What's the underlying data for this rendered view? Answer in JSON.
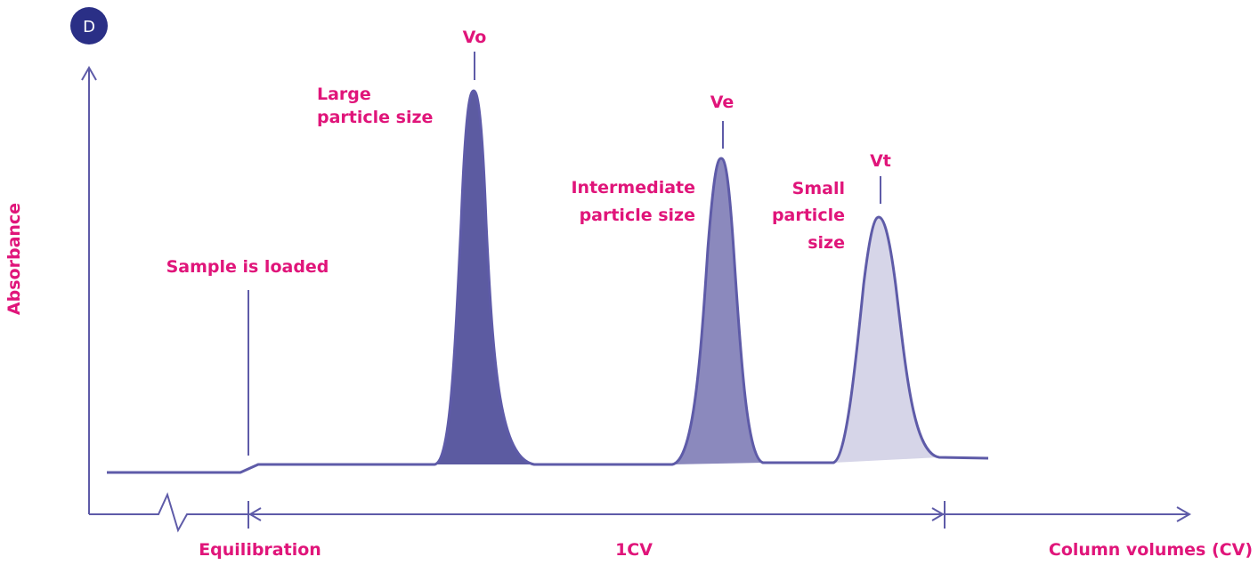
{
  "badge": {
    "letter": "D"
  },
  "axes": {
    "y_label": "Absorbance",
    "x_label": "Column volumes (CV)"
  },
  "segments": {
    "equilibration": "Equilibration",
    "cv": "1CV"
  },
  "events": {
    "sample_loaded": "Sample is loaded"
  },
  "peaks": [
    {
      "id": "vo",
      "marker": "Vo",
      "desc_lines": [
        "Large",
        "particle size"
      ]
    },
    {
      "id": "ve",
      "marker": "Ve",
      "desc_lines": [
        "Intermediate",
        "particle size"
      ]
    },
    {
      "id": "vt",
      "marker": "Vt",
      "desc_lines": [
        "Small",
        "particle",
        "size"
      ]
    }
  ],
  "colors": {
    "line": "#5e5ba8",
    "text": "#e0157a",
    "badge": "#2a2f86",
    "peak_vo": "#5c5ba1",
    "peak_ve": "#8b89bd",
    "peak_vt": "#d6d5e8"
  }
}
